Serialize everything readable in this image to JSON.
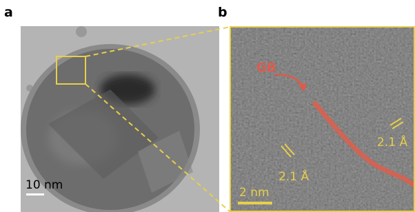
{
  "panels": [
    {
      "label": "a",
      "scale_bar": "10 nm"
    },
    {
      "label": "b",
      "scale_bar": "2 nm",
      "annotations": [
        "GB",
        "2.1 Å",
        "2.1 Å"
      ]
    }
  ]
}
